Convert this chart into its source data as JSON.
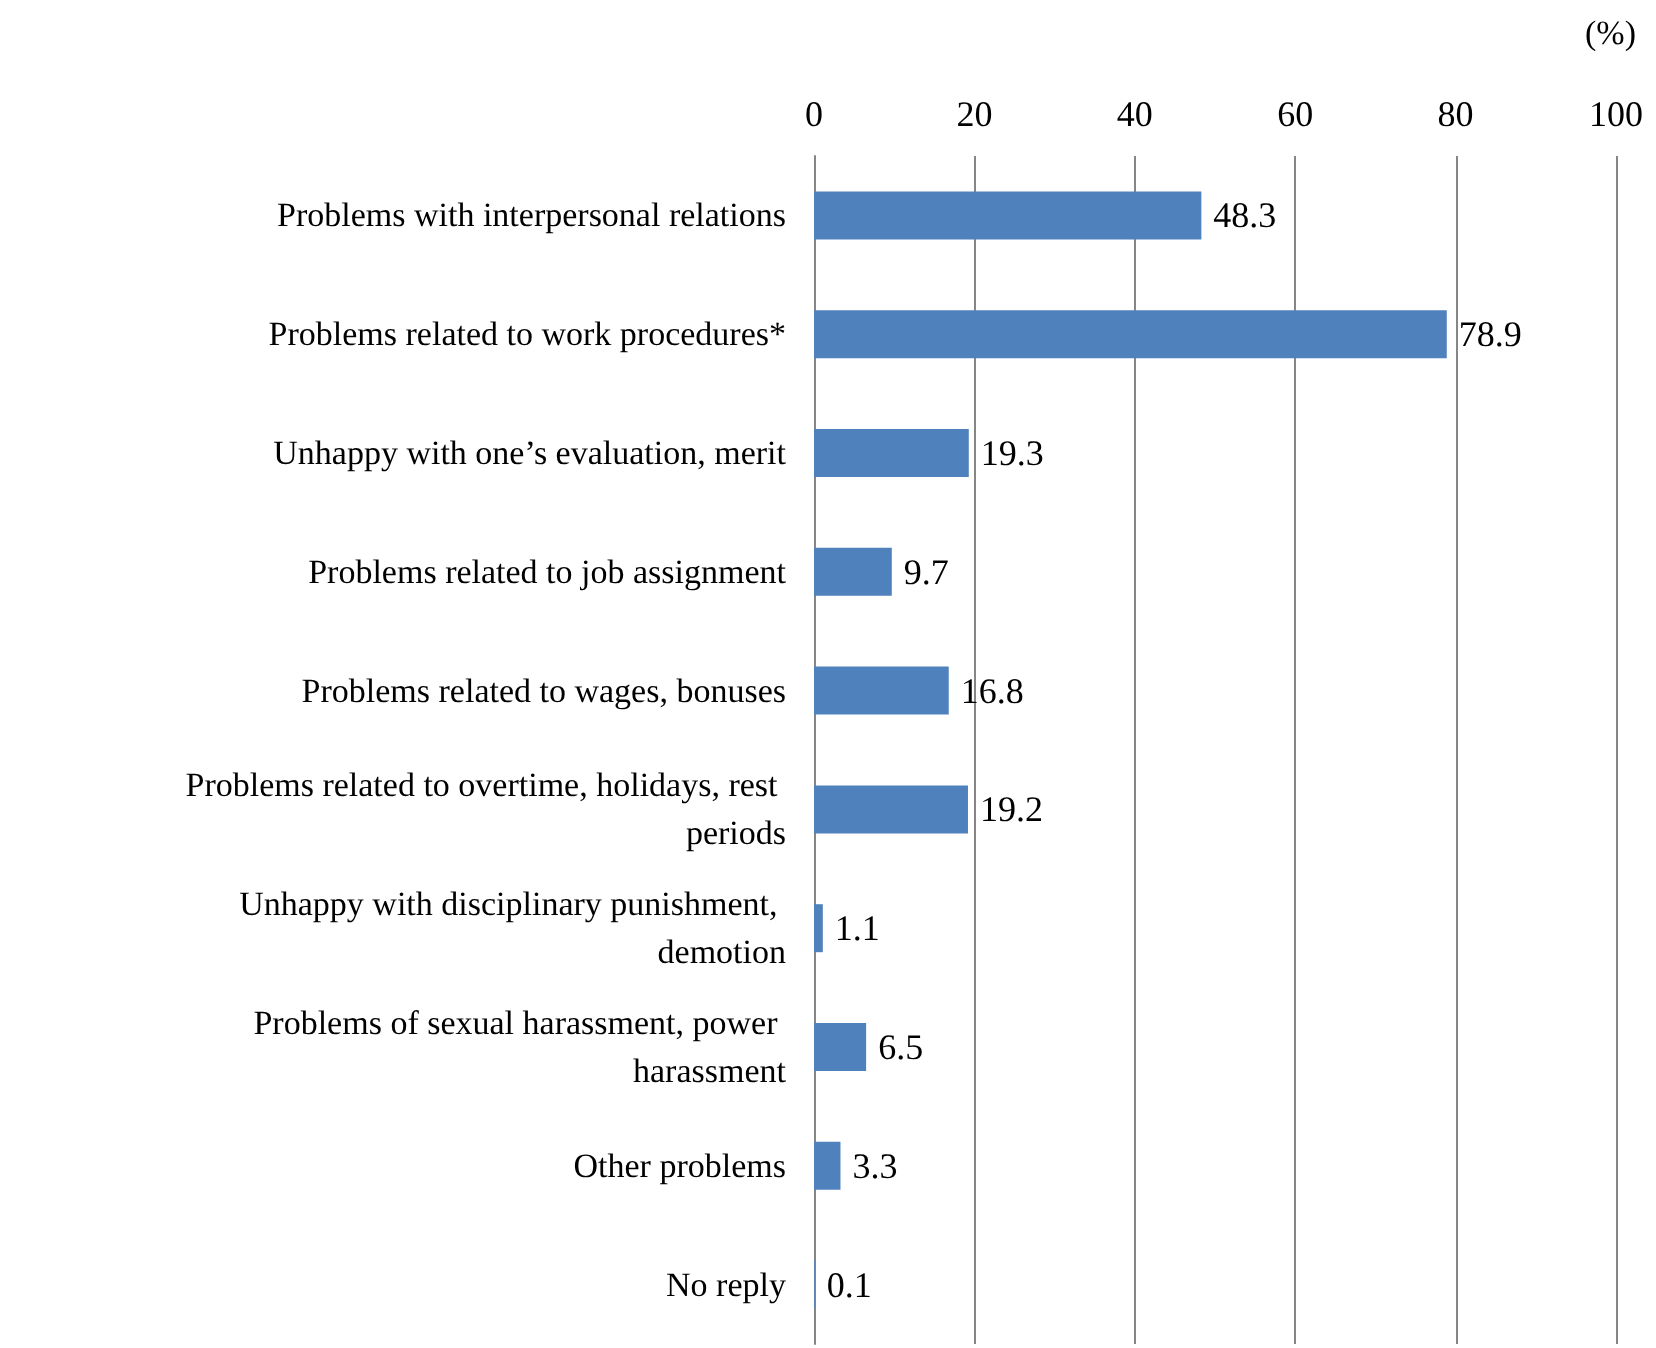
{
  "chart_data": {
    "type": "bar",
    "orientation": "horizontal",
    "xlabel": "(%)",
    "categories": [
      "Problems with interpersonal relations",
      "Problems related to work procedures*",
      "Unhappy with one’s evaluation, merit",
      "Problems related to job assignment",
      "Problems related to wages, bonuses",
      "Problems related to overtime, holidays, rest periods",
      "Unhappy with disciplinary punishment, demotion",
      "Problems of sexual harassment, power harassment",
      "Other problems",
      "No reply"
    ],
    "values": [
      48.3,
      78.9,
      19.3,
      9.7,
      16.8,
      19.2,
      1.1,
      6.5,
      3.3,
      0.1
    ],
    "color": "#4f81bd",
    "xlim": [
      0,
      100
    ],
    "xticks": [
      0,
      20,
      40,
      60,
      80,
      100
    ],
    "grid": "x",
    "data_labels": true
  }
}
